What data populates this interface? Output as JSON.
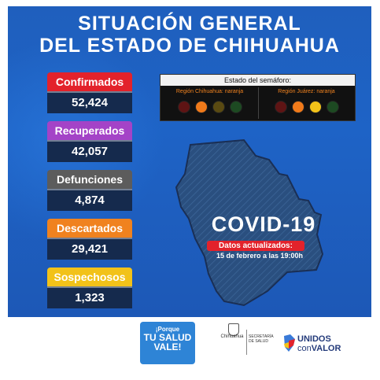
{
  "title": {
    "line1": "SITUACIÓN GENERAL",
    "line2": "DEL ESTADO DE CHIHUAHUA"
  },
  "stats": [
    {
      "label": "Confirmados",
      "value": "52,424",
      "color": "#e3222b"
    },
    {
      "label": "Recuperados",
      "value": "42,057",
      "color": "#a443c7"
    },
    {
      "label": "Defunciones",
      "value": "4,874",
      "color": "#5c5c5c"
    },
    {
      "label": "Descartados",
      "value": "29,421",
      "color": "#f0821f"
    },
    {
      "label": "Sospechosos",
      "value": "1,323",
      "color": "#f2c219"
    }
  ],
  "semaforo": {
    "header": "Estado del semáforo:",
    "regions": [
      {
        "name": "Región Chihuahua: naranja",
        "name_color": "#f0821f"
      },
      {
        "name": "Región Juárez: naranja",
        "name_color": "#f0821f"
      }
    ]
  },
  "map": {
    "headline": "COVID-19",
    "updated_label": "Datos actualizados:",
    "updated_date": "15 de febrero a las 19:00h"
  },
  "footer": {
    "badge_line1": "¡Porque",
    "badge_line2": "TU SALUD",
    "badge_line3": "VALE!",
    "gob_label": "Chihuahua",
    "secretaria_label": "SECRETARÍA DE SALUD",
    "unidos": "UNIDOS",
    "con": "con",
    "valor": "VALOR"
  }
}
